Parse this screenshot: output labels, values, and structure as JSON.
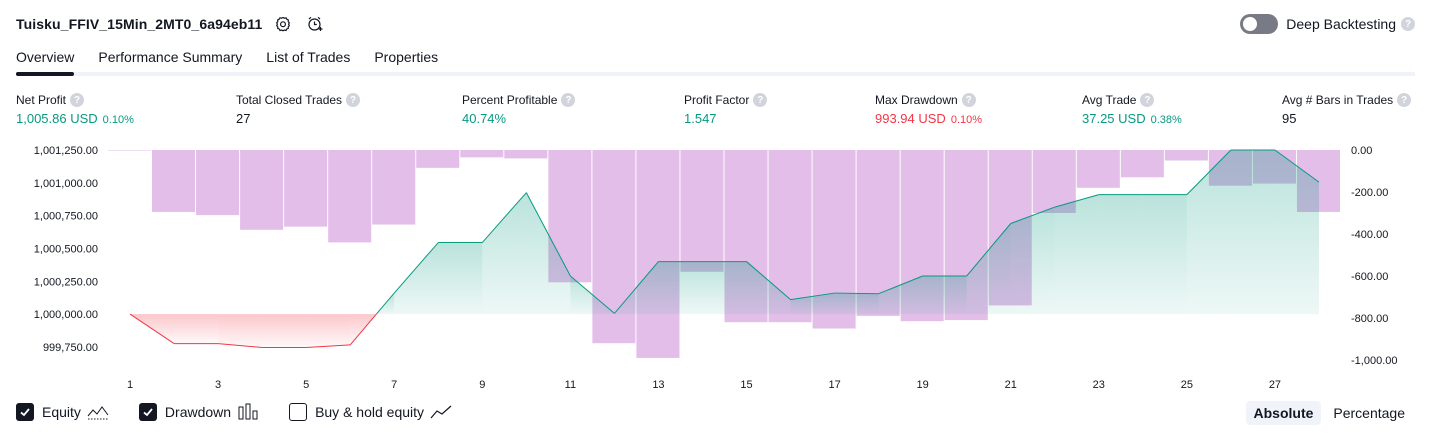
{
  "header": {
    "strategy_name": "Tuisku_FFIV_15Min_2MT0_6a94eb11",
    "settings_icon": "gear-icon",
    "alert_icon": "alarm-clock-plus-icon",
    "deep_backtesting_label": "Deep Backtesting",
    "deep_backtesting_on": false,
    "help_glyph": "?"
  },
  "tabs": [
    {
      "label": "Overview",
      "active": true
    },
    {
      "label": "Performance Summary",
      "active": false
    },
    {
      "label": "List of Trades",
      "active": false
    },
    {
      "label": "Properties",
      "active": false
    }
  ],
  "metrics": [
    {
      "label": "Net Profit",
      "value": "1,005.86 USD",
      "pct": "0.10%",
      "color": "#089981"
    },
    {
      "label": "Total Closed Trades",
      "value": "27",
      "pct": "",
      "color": "#131722"
    },
    {
      "label": "Percent Profitable",
      "value": "40.74%",
      "pct": "",
      "color": "#089981"
    },
    {
      "label": "Profit Factor",
      "value": "1.547",
      "pct": "",
      "color": "#089981"
    },
    {
      "label": "Max Drawdown",
      "value": "993.94 USD",
      "pct": "0.10%",
      "color": "#f23645"
    },
    {
      "label": "Avg Trade",
      "value": "37.25 USD",
      "pct": "0.38%",
      "color": "#089981"
    },
    {
      "label": "Avg # Bars in Trades",
      "value": "95",
      "pct": "",
      "color": "#131722"
    }
  ],
  "chart_data": {
    "type": "line",
    "x_ticks": [
      "1",
      "3",
      "5",
      "7",
      "9",
      "11",
      "13",
      "15",
      "17",
      "19",
      "21",
      "23",
      "25",
      "27"
    ],
    "left_axis": {
      "ticks": [
        "1,001,250.00",
        "1,001,000.00",
        "1,000,750.00",
        "1,000,500.00",
        "1,000,250.00",
        "1,000,000.00",
        "999,750.00"
      ],
      "range": [
        999650,
        1001250
      ]
    },
    "right_axis": {
      "ticks": [
        "0.00",
        "-200.00",
        "-400.00",
        "-600.00",
        "-800.00",
        "-1,000.00"
      ],
      "range": [
        -1000,
        0
      ]
    },
    "series": [
      {
        "name": "Equity",
        "axis": "left",
        "color": "#089981",
        "x": [
          1,
          2,
          3,
          4,
          5,
          6,
          7,
          8,
          9,
          10,
          11,
          12,
          13,
          14,
          15,
          16,
          17,
          18,
          19,
          20,
          21,
          22,
          23,
          24,
          25,
          26,
          27,
          28
        ],
        "values": [
          1000000,
          999775,
          999775,
          999745,
          999745,
          999765,
          1000160,
          1000545,
          1000545,
          1000925,
          1000290,
          1000005,
          1000400,
          1000400,
          1000400,
          1000110,
          1000160,
          1000155,
          1000290,
          1000290,
          1000690,
          1000815,
          1000910,
          1000910,
          1000910,
          1001250,
          1001250,
          1001005
        ]
      },
      {
        "name": "Drawdown",
        "axis": "right",
        "color": "#ce93d8",
        "x": [
          1,
          2,
          3,
          4,
          5,
          6,
          7,
          8,
          9,
          10,
          11,
          12,
          13,
          14,
          15,
          16,
          17,
          18,
          19,
          20,
          21,
          22,
          23,
          24,
          25,
          26,
          27,
          28
        ],
        "values": [
          0,
          -295,
          -310,
          -380,
          -365,
          -440,
          -355,
          -85,
          -35,
          -40,
          -630,
          -920,
          -990,
          -580,
          -820,
          -820,
          -850,
          -790,
          -815,
          -810,
          -740,
          -300,
          -180,
          -130,
          -50,
          -170,
          -160,
          -295
        ]
      }
    ],
    "grid": false
  },
  "legend": {
    "items": [
      {
        "label": "Equity",
        "checked": true,
        "icon": "area-line-icon"
      },
      {
        "label": "Drawdown",
        "checked": true,
        "icon": "bar-chart-icon"
      },
      {
        "label": "Buy & hold equity",
        "checked": false,
        "icon": "line-chart-icon"
      }
    ],
    "modes": [
      {
        "label": "Absolute",
        "active": true
      },
      {
        "label": "Percentage",
        "active": false
      }
    ]
  }
}
